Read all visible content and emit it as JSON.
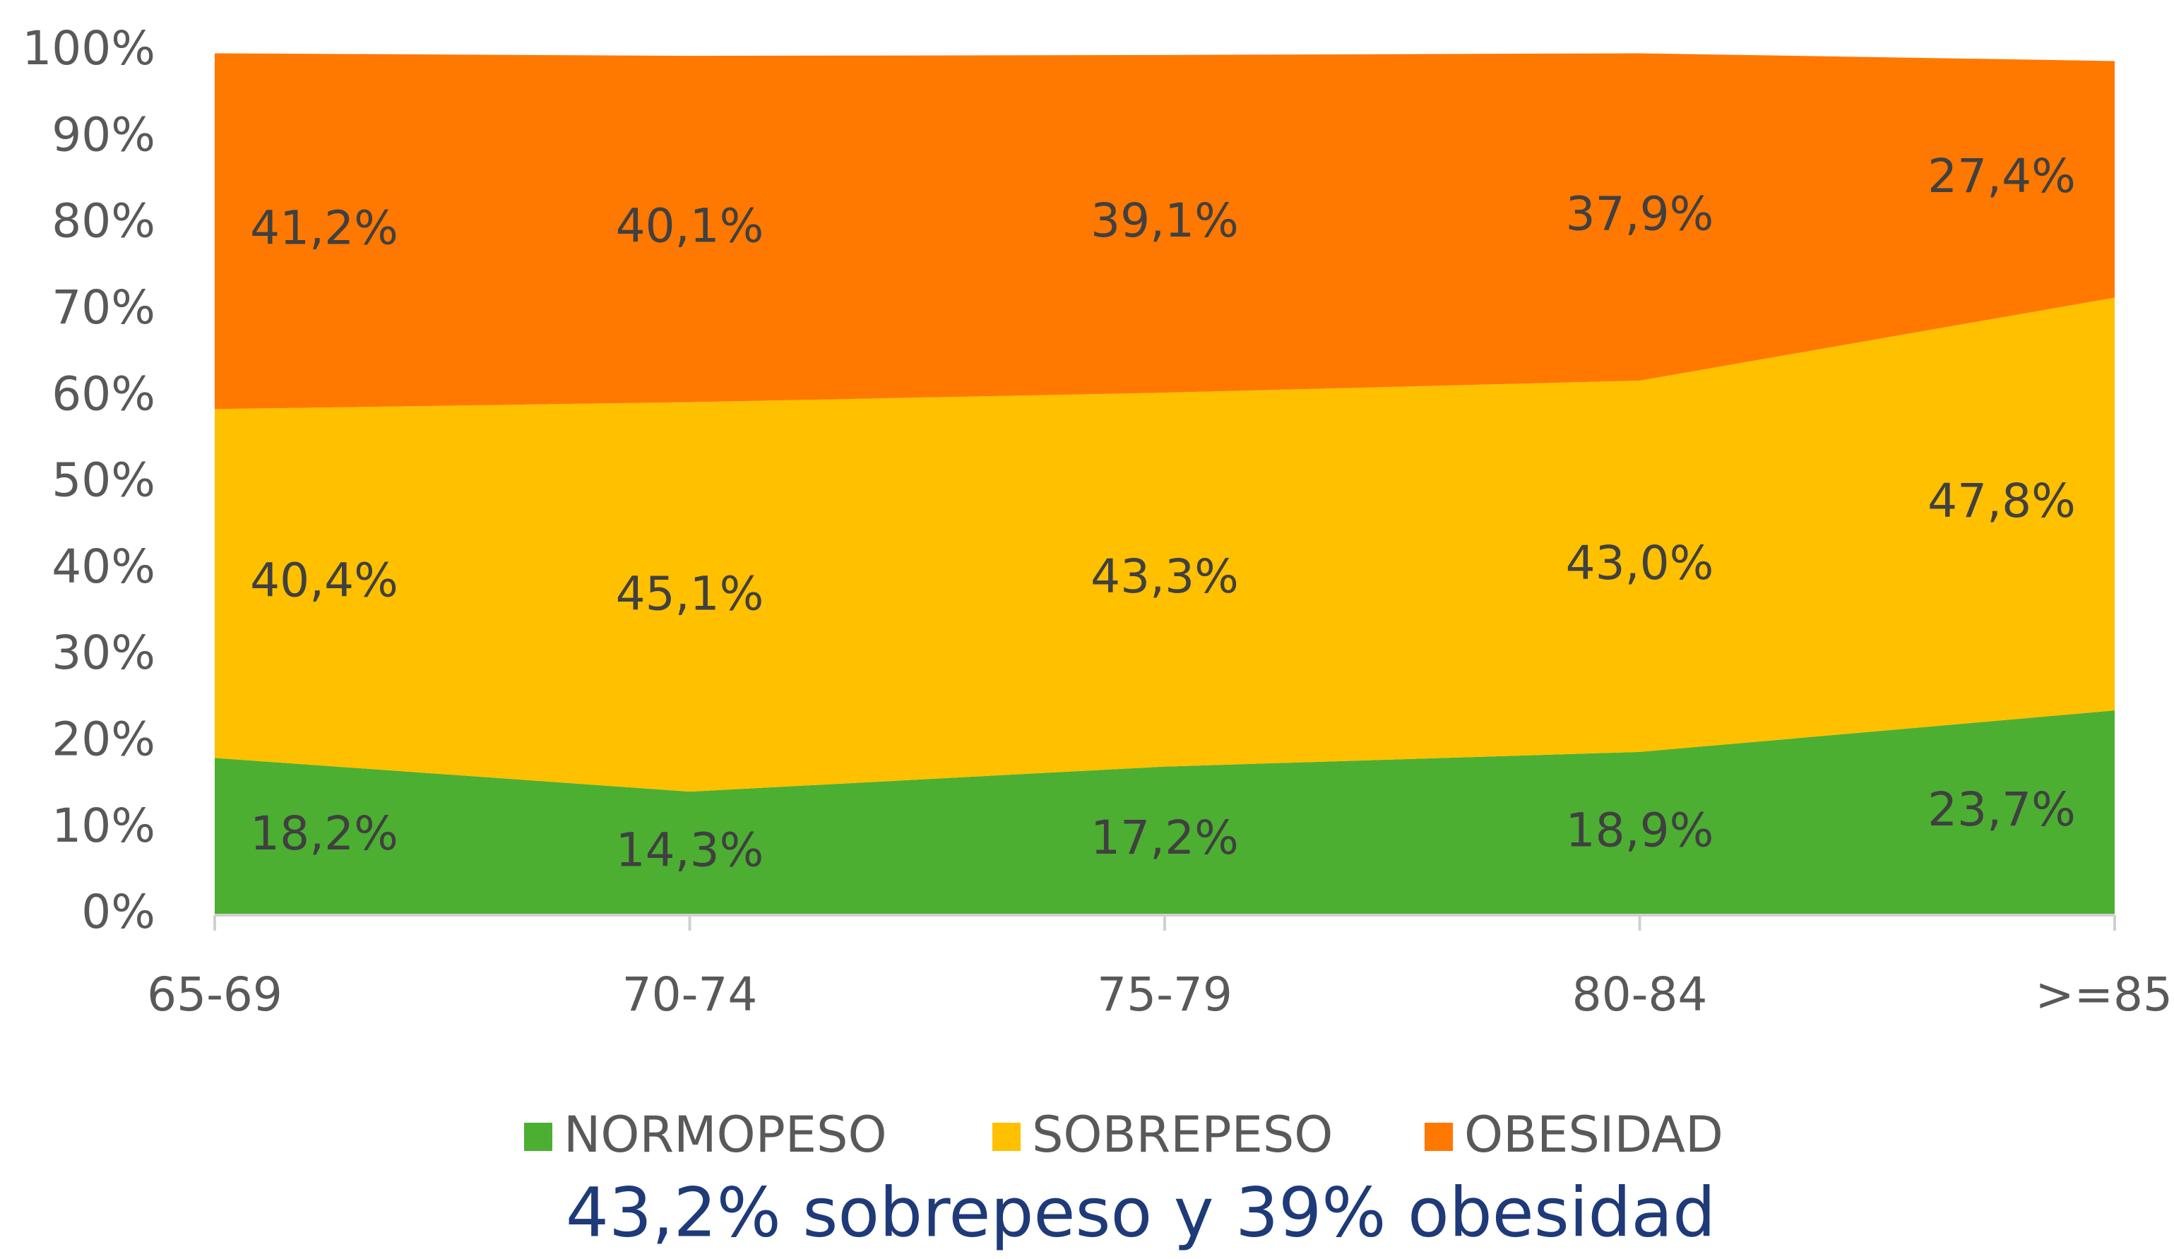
{
  "chart_data": {
    "type": "area",
    "stacked": true,
    "annotation": "43,2% sobrepeso y 39% obesidad",
    "categories": [
      "65-69",
      "70-74",
      "75-79",
      "80-84",
      ">=85"
    ],
    "series": [
      {
        "name": "NORMOPESO",
        "color": "#4caf32",
        "values": [
          18.2,
          14.3,
          17.2,
          18.9,
          23.7
        ],
        "value_labels": [
          "18,2%",
          "14,3%",
          "17,2%",
          "18,9%",
          "23,7%"
        ]
      },
      {
        "name": "SOBREPESO",
        "color": "#ffc000",
        "values": [
          40.4,
          45.1,
          43.3,
          43.0,
          47.8
        ],
        "value_labels": [
          "40,4%",
          "45,1%",
          "43,3%",
          "43,0%",
          "47,8%"
        ]
      },
      {
        "name": "OBESIDAD",
        "color": "#ff7800",
        "values": [
          41.2,
          40.1,
          39.1,
          37.9,
          27.4
        ],
        "value_labels": [
          "41,2%",
          "40,1%",
          "39,1%",
          "37,9%",
          "27,4%"
        ]
      }
    ],
    "ylim": [
      0,
      100
    ],
    "yticks": [
      {
        "value": 0,
        "label": "0%"
      },
      {
        "value": 10,
        "label": "10%"
      },
      {
        "value": 20,
        "label": "20%"
      },
      {
        "value": 30,
        "label": "30%"
      },
      {
        "value": 40,
        "label": "40%"
      },
      {
        "value": 50,
        "label": "50%"
      },
      {
        "value": 60,
        "label": "60%"
      },
      {
        "value": 70,
        "label": "70%"
      },
      {
        "value": 80,
        "label": "80%"
      },
      {
        "value": 90,
        "label": "90%"
      },
      {
        "value": 100,
        "label": "100%"
      }
    ],
    "legend": "bottom"
  }
}
